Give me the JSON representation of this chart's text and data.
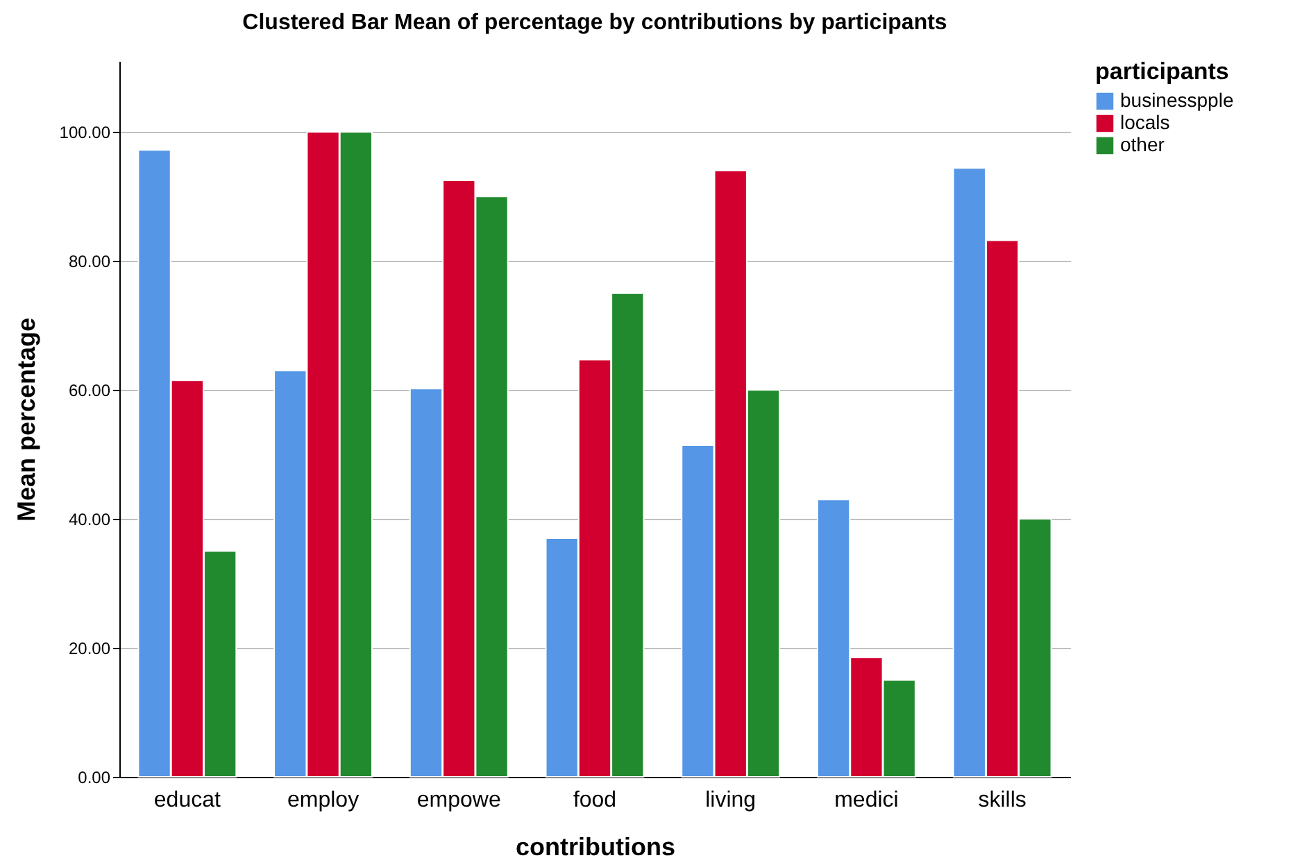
{
  "chart_data": {
    "type": "bar",
    "title": "Clustered Bar Mean of percentage by contributions by participants",
    "xlabel": "contributions",
    "ylabel": "Mean percentage",
    "legend_title": "participants",
    "categories": [
      "educat",
      "employ",
      "empowe",
      "food",
      "living",
      "medici",
      "skills"
    ],
    "series": [
      {
        "name": "businesspple",
        "color": "#5596e6",
        "values": [
          97.2,
          63,
          60.2,
          37,
          51.4,
          43,
          94.4
        ]
      },
      {
        "name": "locals",
        "color": "#d2002e",
        "values": [
          61.5,
          100,
          92.5,
          64.7,
          94,
          18.5,
          83.2
        ]
      },
      {
        "name": "other",
        "color": "#228a2e",
        "values": [
          35,
          100,
          90,
          75,
          60,
          15,
          40
        ]
      }
    ],
    "ylim": [
      0,
      111
    ],
    "yticks": [
      {
        "value": 0,
        "label": "0.00"
      },
      {
        "value": 20,
        "label": "20.00"
      },
      {
        "value": 40,
        "label": "40.00"
      },
      {
        "value": 60,
        "label": "60.00"
      },
      {
        "value": 80,
        "label": "80.00"
      },
      {
        "value": 100,
        "label": "100.00"
      }
    ],
    "grid": "y",
    "legend": "top right"
  }
}
